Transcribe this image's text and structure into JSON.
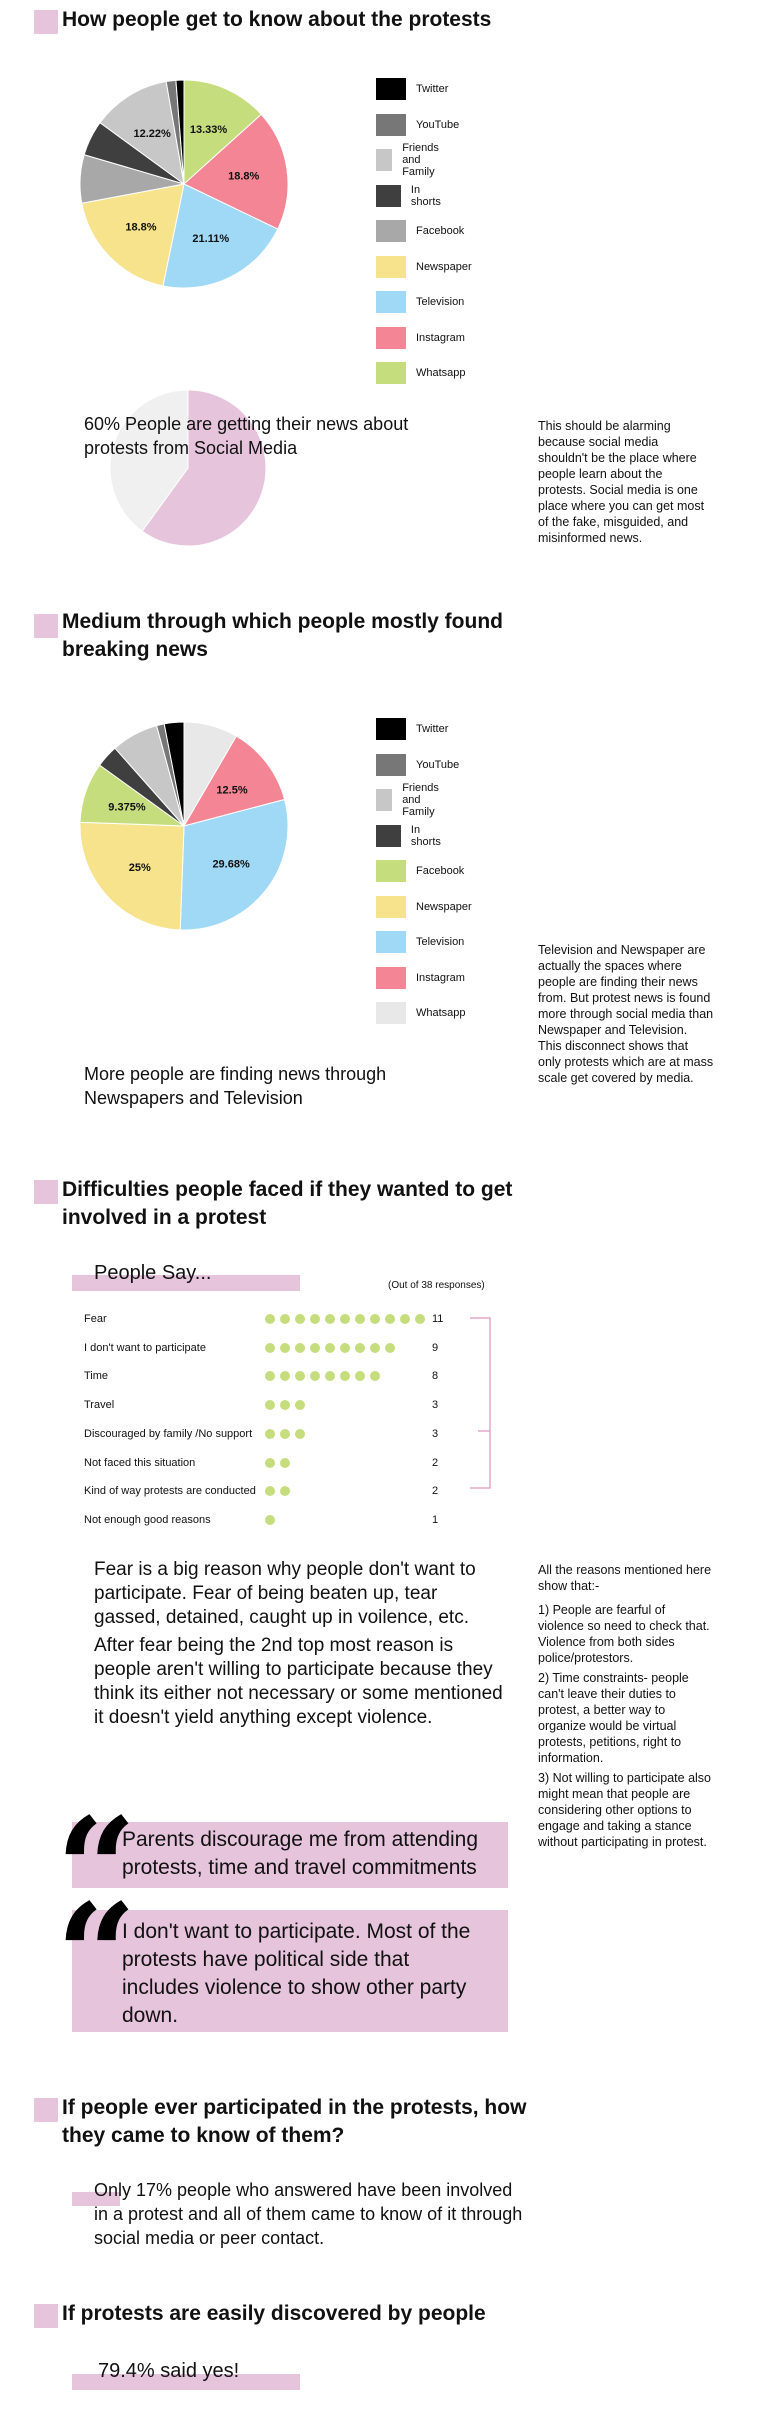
{
  "colors": {
    "Twitter": "#000000",
    "YouTube": "#777777",
    "Friends and Family": "#c7c7c7",
    "In shorts": "#3f3f3f",
    "Facebook": "#a8a8a8",
    "Newspaper": "#f6e38c",
    "Television": "#9fd9f5",
    "Instagram": "#f48594",
    "Whatsapp": "#c6dd7e",
    "accent": "#e6c4dc",
    "Whatsapp2": "#e8e8e8"
  },
  "section1": {
    "title": "How people get to know about the protests",
    "headline": "60% People are getting their news about protests from Social Media",
    "note": "This should be alarming because social media shouldn't be the place where people learn about the protests. Social media is one place where you can get most of the fake, misguided, and misinformed news."
  },
  "section2": {
    "title": "Medium through which people mostly found breaking news",
    "headline": "More people are finding news through Newspapers and Television",
    "note": "Television and Newspaper are actually the spaces where people are finding their news from. But protest news is found more through social media than Newspaper and Television. This disconnect shows that only protests which are at mass scale get covered by media."
  },
  "section3": {
    "title": "Difficulties people faced if they wanted to get involved in a protest",
    "people_say": "People Say...",
    "out_of": "(Out of 38 responses)",
    "para1": "Fear is a big reason why people don't want to participate. Fear of being beaten up, tear gassed, detained,  caught up in voilence, etc.",
    "para2": "After fear being the 2nd top most reason is people aren't willing to participate because they think its either not necessary or some mentioned it doesn't yield anything except violence.",
    "note_intro": "All the reasons mentioned here show that:-",
    "note_1": "1) People are fearful of violence so need to check that. Violence from both sides police/protestors.",
    "note_2": "2) Time constraints- people can't leave their duties to protest, a better way to organize would be virtual protests, petitions, right to information.",
    "note_3": "3) Not willing to participate also might mean that people are considering other options to engage and taking a stance without  participating in protest.",
    "quote1": "Parents discourage me from attending protests, time and travel commitments",
    "quote2": "I don't want to participate. Most of the protests have political side that includes violence to show other party down."
  },
  "section4": {
    "title": "If people ever participated in the protests, how they came to know of them?",
    "text": "Only 17% people who answered have been involved in a protest and all of them came to know of it through social media or peer contact."
  },
  "section5": {
    "title": "If protests  are easily discovered by people",
    "text": "79.4% said yes!"
  },
  "chart_data": [
    {
      "type": "pie",
      "legend": [
        "Twitter",
        "YouTube",
        "Friends and Family",
        "In shorts",
        "Facebook",
        "Newspaper",
        "Television",
        "Instagram",
        "Whatsapp"
      ],
      "slices": [
        {
          "name": "Whatsapp",
          "value": 13.33,
          "label": "13.33%"
        },
        {
          "name": "Instagram",
          "value": 18.8,
          "label": "18.8%"
        },
        {
          "name": "Television",
          "value": 21.11,
          "label": "21.11%"
        },
        {
          "name": "Newspaper",
          "value": 18.8,
          "label": "18.8%"
        },
        {
          "name": "Facebook",
          "value": 7.5,
          "label": ""
        },
        {
          "name": "In shorts",
          "value": 5.5,
          "label": ""
        },
        {
          "name": "Friends and Family",
          "value": 12.22,
          "label": "12.22%"
        },
        {
          "name": "YouTube",
          "value": 1.5,
          "label": ""
        },
        {
          "name": "Twitter",
          "value": 1.24,
          "label": ""
        }
      ]
    },
    {
      "type": "pie",
      "slices": [
        {
          "name": "Social Media",
          "value": 60,
          "label": ""
        },
        {
          "name": "Other",
          "value": 40,
          "label": ""
        }
      ]
    },
    {
      "type": "pie",
      "legend": [
        "Twitter",
        "YouTube",
        "Friends and Family",
        "In shorts",
        "Facebook",
        "Newspaper",
        "Television",
        "Instagram",
        "Whatsapp"
      ],
      "slices": [
        {
          "name": "Whatsapp",
          "value": 8.4,
          "label": ""
        },
        {
          "name": "Instagram",
          "value": 12.5,
          "label": "12.5%"
        },
        {
          "name": "Television",
          "value": 29.68,
          "label": "29.68%"
        },
        {
          "name": "Newspaper",
          "value": 25,
          "label": "25%"
        },
        {
          "name": "Facebook",
          "value": 9.375,
          "label": "9.375%"
        },
        {
          "name": "In shorts",
          "value": 3.5,
          "label": ""
        },
        {
          "name": "Friends and Family",
          "value": 7.3,
          "label": ""
        },
        {
          "name": "YouTube",
          "value": 1.2,
          "label": ""
        },
        {
          "name": "Twitter",
          "value": 3.045,
          "label": ""
        }
      ]
    },
    {
      "type": "bar",
      "title": "People Say...",
      "categories": [
        "Fear",
        "I don't want to participate",
        "Time",
        "Travel",
        "Discouraged by family /No support",
        "Not faced this situation",
        "Kind of way protests are conducted",
        "Not enough good reasons"
      ],
      "values": [
        11,
        9,
        8,
        3,
        3,
        2,
        2,
        1
      ]
    }
  ]
}
